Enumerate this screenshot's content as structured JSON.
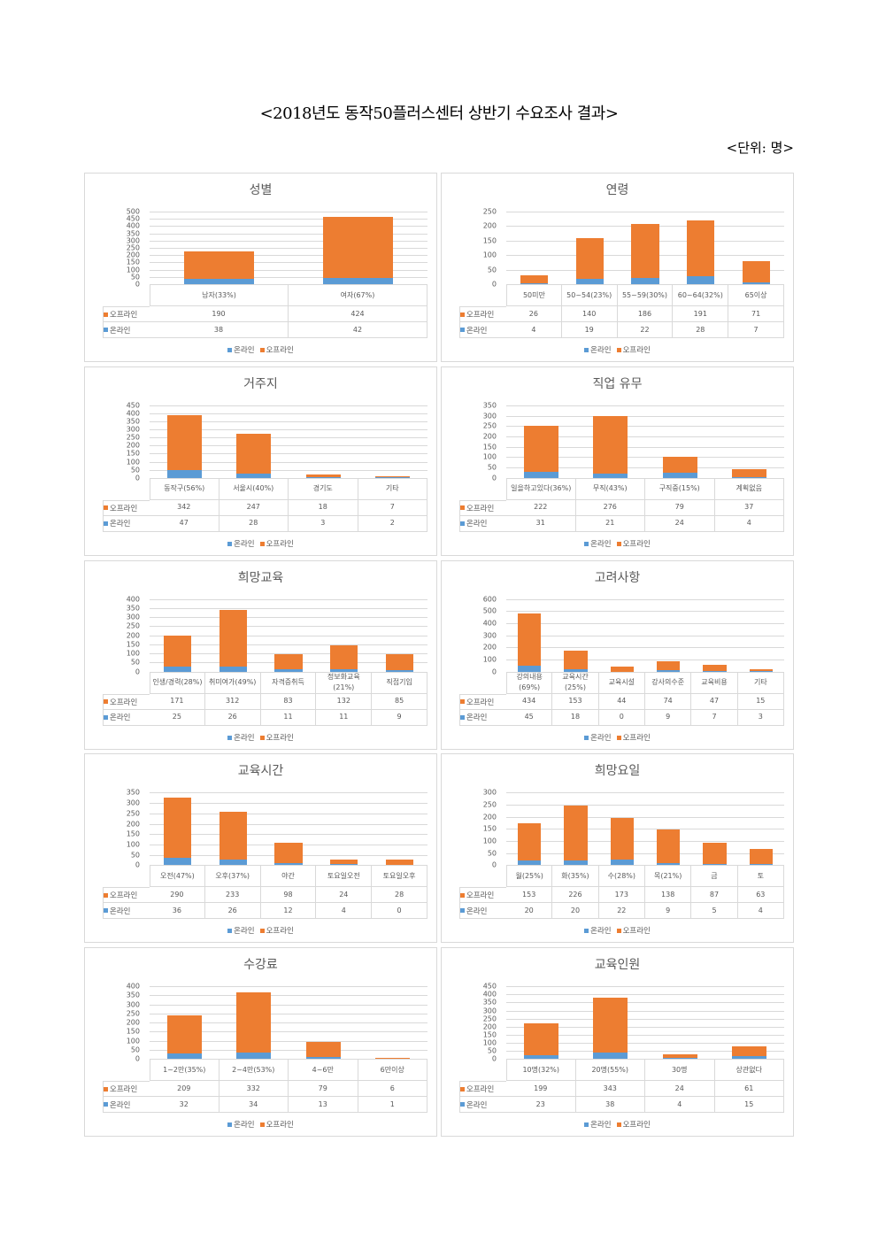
{
  "title": "<2018년도 동작50플러스센터 상반기 수요조사 결과>",
  "unit": "<단위: 명>",
  "series_labels": {
    "offline": "오프라인",
    "online": "온라인"
  },
  "colors": {
    "offline": "#ED7D31",
    "online": "#5B9BD5"
  },
  "chart_data": [
    {
      "type": "bar",
      "stacked": true,
      "title": "성별",
      "ylim": [
        0,
        500
      ],
      "ystep": 50,
      "categories": [
        "남자(33%)",
        "여자(67%)"
      ],
      "series": [
        {
          "name": "오프라인",
          "values": [
            190,
            424
          ]
        },
        {
          "name": "온라인",
          "values": [
            38,
            42
          ]
        }
      ]
    },
    {
      "type": "bar",
      "stacked": true,
      "title": "연령",
      "ylim": [
        0,
        250
      ],
      "ystep": 50,
      "categories": [
        "50미만",
        "50~54(23%)",
        "55~59(30%)",
        "60~64(32%)",
        "65이상"
      ],
      "series": [
        {
          "name": "오프라인",
          "values": [
            26,
            140,
            186,
            191,
            71
          ]
        },
        {
          "name": "온라인",
          "values": [
            4,
            19,
            22,
            28,
            7
          ]
        }
      ]
    },
    {
      "type": "bar",
      "stacked": true,
      "title": "거주지",
      "ylim": [
        0,
        450
      ],
      "ystep": 50,
      "categories": [
        "동작구(56%)",
        "서울시(40%)",
        "경기도",
        "기타"
      ],
      "series": [
        {
          "name": "오프라인",
          "values": [
            342,
            247,
            18,
            7
          ]
        },
        {
          "name": "온라인",
          "values": [
            47,
            28,
            3,
            2
          ]
        }
      ]
    },
    {
      "type": "bar",
      "stacked": true,
      "title": "직업 유무",
      "ylim": [
        0,
        350
      ],
      "ystep": 50,
      "categories": [
        "일을하고있다(36%)",
        "무직(43%)",
        "구직중(15%)",
        "계획없음"
      ],
      "series": [
        {
          "name": "오프라인",
          "values": [
            222,
            276,
            79,
            37
          ]
        },
        {
          "name": "온라인",
          "values": [
            31,
            21,
            24,
            4
          ]
        }
      ]
    },
    {
      "type": "bar",
      "stacked": true,
      "title": "희망교육",
      "ylim": [
        0,
        400
      ],
      "ystep": 50,
      "categories": [
        "인생/경력(28%)",
        "취미여가(49%)",
        "자격증취득",
        "정보화교육(21%)",
        "직접기입"
      ],
      "series": [
        {
          "name": "오프라인",
          "values": [
            171,
            312,
            83,
            132,
            85
          ]
        },
        {
          "name": "온라인",
          "values": [
            25,
            26,
            11,
            11,
            9
          ]
        }
      ]
    },
    {
      "type": "bar",
      "stacked": true,
      "title": "고려사항",
      "ylim": [
        0,
        600
      ],
      "ystep": 100,
      "categories": [
        "강의내용(69%)",
        "교육시간(25%)",
        "교육시설",
        "강사의수준",
        "교육비용",
        "기타"
      ],
      "series": [
        {
          "name": "오프라인",
          "values": [
            434,
            153,
            44,
            74,
            47,
            15
          ]
        },
        {
          "name": "온라인",
          "values": [
            45,
            18,
            0,
            9,
            7,
            3
          ]
        }
      ]
    },
    {
      "type": "bar",
      "stacked": true,
      "title": "교육시간",
      "ylim": [
        0,
        350
      ],
      "ystep": 50,
      "categories": [
        "오전(47%)",
        "오후(37%)",
        "야간",
        "토요일오전",
        "토요일오후"
      ],
      "series": [
        {
          "name": "오프라인",
          "values": [
            290,
            233,
            98,
            24,
            28
          ]
        },
        {
          "name": "온라인",
          "values": [
            36,
            26,
            12,
            4,
            0
          ]
        }
      ]
    },
    {
      "type": "bar",
      "stacked": true,
      "title": "희망요일",
      "ylim": [
        0,
        300
      ],
      "ystep": 50,
      "categories": [
        "월(25%)",
        "화(35%)",
        "수(28%)",
        "목(21%)",
        "금",
        "토"
      ],
      "series": [
        {
          "name": "오프라인",
          "values": [
            153,
            226,
            173,
            138,
            87,
            63
          ]
        },
        {
          "name": "온라인",
          "values": [
            20,
            20,
            22,
            9,
            5,
            4
          ]
        }
      ]
    },
    {
      "type": "bar",
      "stacked": true,
      "title": "수강료",
      "ylim": [
        0,
        400
      ],
      "ystep": 50,
      "categories": [
        "1~2만(35%)",
        "2~4만(53%)",
        "4~6만",
        "6만이상"
      ],
      "series": [
        {
          "name": "오프라인",
          "values": [
            209,
            332,
            79,
            6
          ]
        },
        {
          "name": "온라인",
          "values": [
            32,
            34,
            13,
            1
          ]
        }
      ]
    },
    {
      "type": "bar",
      "stacked": true,
      "title": "교육인원",
      "ylim": [
        0,
        450
      ],
      "ystep": 50,
      "categories": [
        "10명(32%)",
        "20명(55%)",
        "30명",
        "상관없다"
      ],
      "series": [
        {
          "name": "오프라인",
          "values": [
            199,
            343,
            24,
            61
          ]
        },
        {
          "name": "온라인",
          "values": [
            23,
            38,
            4,
            15
          ]
        }
      ]
    }
  ]
}
